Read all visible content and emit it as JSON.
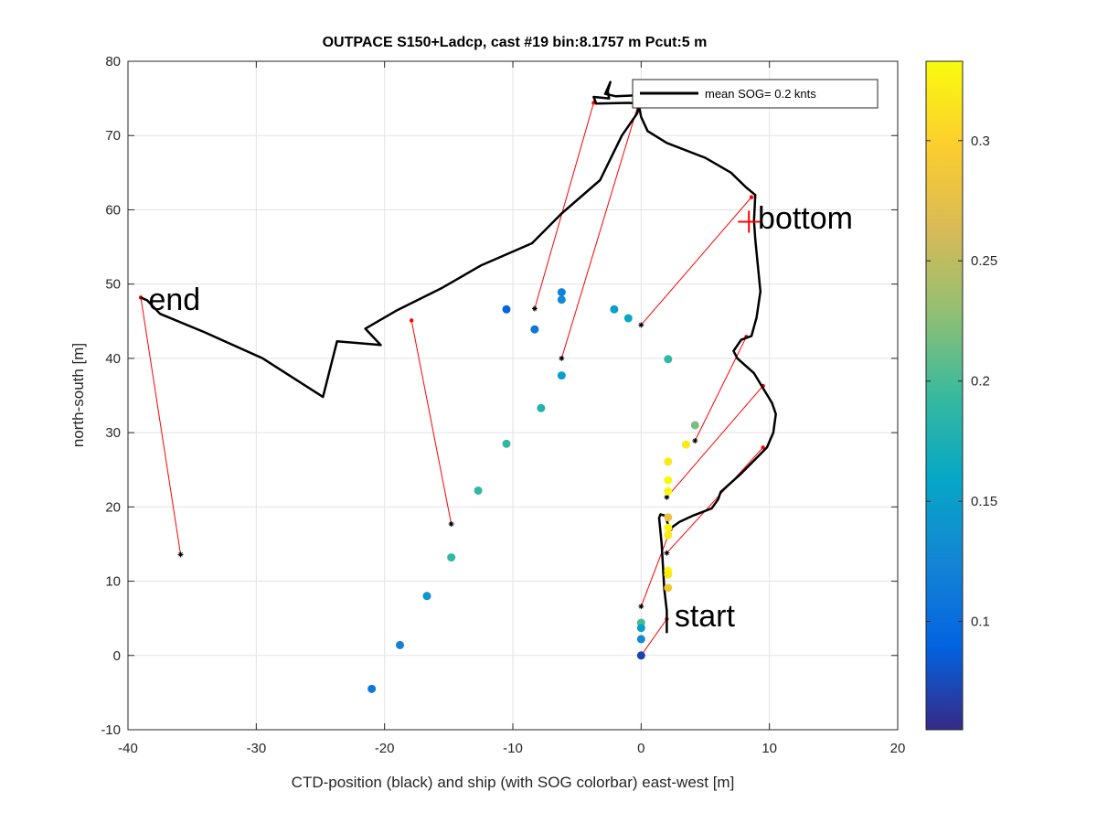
{
  "chart_data": {
    "type": "scatter",
    "title": "OUTPACE S150+Ladcp, cast #19 bin:8.1757 m  Pcut:5 m",
    "xlabel": "CTD-position (black) and ship (with SOG colorbar) east-west [m]",
    "ylabel": "north-south [m]",
    "xlim": [
      -40,
      20
    ],
    "ylim": [
      -10,
      80
    ],
    "xticks": [
      -40,
      -30,
      -20,
      -10,
      0,
      10,
      20
    ],
    "yticks": [
      -10,
      0,
      10,
      20,
      30,
      40,
      50,
      60,
      70,
      80
    ],
    "grid": true,
    "legend": {
      "label": "mean SOG=  0.2 knts",
      "placement": "top-right"
    },
    "colorbar": {
      "range": [
        0.055,
        0.333
      ],
      "ticks": [
        0.1,
        0.15,
        0.2,
        0.25,
        0.3
      ],
      "colormap": "parula"
    },
    "ctd_track": [
      [
        2.0,
        3.0
      ],
      [
        2.0,
        6.0
      ],
      [
        1.8,
        9.0
      ],
      [
        1.7,
        12.0
      ],
      [
        1.6,
        15.0
      ],
      [
        1.4,
        18.5
      ],
      [
        1.5,
        19.0
      ],
      [
        1.9,
        18.8
      ],
      [
        2.2,
        17.0
      ],
      [
        3.0,
        18.0
      ],
      [
        4.0,
        18.8
      ],
      [
        5.5,
        19.8
      ],
      [
        6.0,
        21.0
      ],
      [
        6.2,
        22.0
      ],
      [
        7.8,
        24.5
      ],
      [
        9.8,
        28.0
      ],
      [
        10.3,
        30.0
      ],
      [
        10.5,
        32.5
      ],
      [
        10.2,
        34.0
      ],
      [
        9.5,
        36.0
      ],
      [
        8.8,
        38.0
      ],
      [
        7.5,
        40.0
      ],
      [
        7.2,
        41.0
      ],
      [
        7.8,
        42.5
      ],
      [
        8.6,
        43.0
      ],
      [
        9.0,
        45.5
      ],
      [
        9.3,
        49.0
      ],
      [
        9.1,
        52.5
      ],
      [
        8.9,
        56.0
      ],
      [
        8.8,
        58.5
      ],
      [
        8.9,
        62.0
      ],
      [
        8.2,
        63.0
      ],
      [
        7.0,
        65.0
      ],
      [
        5.0,
        67.0
      ],
      [
        2.0,
        69.0
      ],
      [
        0.5,
        70.6
      ],
      [
        0.0,
        72.5
      ],
      [
        -0.2,
        74.3
      ],
      [
        -1.0,
        74.4
      ],
      [
        -3.5,
        74.3
      ],
      [
        -3.7,
        75.2
      ],
      [
        -2.5,
        75.0
      ],
      [
        -2.6,
        76.0
      ],
      [
        -2.4,
        77.2
      ],
      [
        -2.8,
        75.6
      ],
      [
        -2.0,
        75.3
      ],
      [
        -0.5,
        75.4
      ],
      [
        -0.1,
        74.5
      ],
      [
        -0.3,
        73.0
      ],
      [
        -1.5,
        70.0
      ],
      [
        -3.2,
        64.0
      ],
      [
        -6.2,
        59.5
      ],
      [
        -8.5,
        55.5
      ],
      [
        -12.5,
        52.5
      ],
      [
        -15.5,
        49.5
      ],
      [
        -19.0,
        46.5
      ],
      [
        -20.0,
        45.5
      ],
      [
        -21.5,
        44.0
      ],
      [
        -20.3,
        41.8
      ],
      [
        -23.7,
        42.3
      ],
      [
        -24.8,
        34.8
      ],
      [
        -29.5,
        40.0
      ],
      [
        -34.0,
        43.5
      ],
      [
        -37.5,
        46.0
      ],
      [
        -38.5,
        47.8
      ],
      [
        -39.0,
        48.2
      ]
    ],
    "ship_points": [
      {
        "x": -21.0,
        "y": -4.5,
        "sog": 0.11
      },
      {
        "x": -18.8,
        "y": 1.4,
        "sog": 0.12
      },
      {
        "x": -16.7,
        "y": 8.0,
        "sog": 0.14
      },
      {
        "x": -14.8,
        "y": 13.2,
        "sog": 0.19
      },
      {
        "x": -12.7,
        "y": 22.2,
        "sog": 0.19
      },
      {
        "x": -10.5,
        "y": 28.5,
        "sog": 0.19
      },
      {
        "x": -7.8,
        "y": 33.3,
        "sog": 0.18
      },
      {
        "x": -6.2,
        "y": 37.7,
        "sog": 0.15
      },
      {
        "x": -6.2,
        "y": 47.9,
        "sog": 0.13
      },
      {
        "x": -6.2,
        "y": 48.9,
        "sog": 0.12
      },
      {
        "x": -8.3,
        "y": 43.9,
        "sog": 0.11
      },
      {
        "x": -10.5,
        "y": 46.6,
        "sog": 0.09
      },
      {
        "x": -2.1,
        "y": 46.6,
        "sog": 0.15
      },
      {
        "x": -1.0,
        "y": 45.4,
        "sog": 0.16
      },
      {
        "x": 2.1,
        "y": 39.9,
        "sog": 0.19
      },
      {
        "x": 4.2,
        "y": 31.0,
        "sog": 0.22
      },
      {
        "x": 3.5,
        "y": 28.4,
        "sog": 0.32
      },
      {
        "x": 2.1,
        "y": 26.1,
        "sog": 0.32
      },
      {
        "x": 2.1,
        "y": 23.6,
        "sog": 0.33
      },
      {
        "x": 2.1,
        "y": 22.1,
        "sog": 0.33
      },
      {
        "x": 2.1,
        "y": 18.6,
        "sog": 0.28
      },
      {
        "x": 2.1,
        "y": 17.2,
        "sog": 0.33
      },
      {
        "x": 2.1,
        "y": 16.2,
        "sog": 0.32
      },
      {
        "x": 2.1,
        "y": 11.4,
        "sog": 0.33
      },
      {
        "x": 2.1,
        "y": 10.9,
        "sog": 0.32
      },
      {
        "x": 2.1,
        "y": 9.1,
        "sog": 0.29
      },
      {
        "x": 0.0,
        "y": 4.4,
        "sog": 0.2
      },
      {
        "x": 0.0,
        "y": 3.7,
        "sog": 0.15
      },
      {
        "x": 0.0,
        "y": 2.2,
        "sog": 0.13
      },
      {
        "x": 0.0,
        "y": 0.0,
        "sog": 0.07
      }
    ],
    "red_links": [
      {
        "ship": [
          0.0,
          0.0
        ],
        "ctd": [
          2.0,
          4.9
        ]
      },
      {
        "ship": [
          0.0,
          6.6
        ],
        "ctd": [
          2.3,
          17.0
        ]
      },
      {
        "ship": [
          2.0,
          13.8
        ],
        "ctd": [
          9.5,
          28.0
        ]
      },
      {
        "ship": [
          2.0,
          21.3
        ],
        "ctd": [
          9.5,
          36.3
        ]
      },
      {
        "ship": [
          4.2,
          28.9
        ],
        "ctd": [
          8.2,
          42.9
        ]
      },
      {
        "ship": [
          0.0,
          44.5
        ],
        "ctd": [
          8.6,
          61.7
        ]
      },
      {
        "ship": [
          -6.2,
          40.0
        ],
        "ctd": [
          -0.2,
          74.3
        ]
      },
      {
        "ship": [
          -8.3,
          46.7
        ],
        "ctd": [
          -3.7,
          74.4
        ]
      },
      {
        "ship": [
          -14.8,
          17.7
        ],
        "ctd": [
          -17.9,
          45.1
        ]
      },
      {
        "ship": [
          -35.9,
          13.6
        ],
        "ctd": [
          -39.0,
          48.2
        ]
      }
    ],
    "annotations": [
      {
        "text": "start",
        "x": 2.6,
        "y": 3.9
      },
      {
        "text": "bottom",
        "x": 9.1,
        "y": 57.5
      },
      {
        "text": "end",
        "x": -38.4,
        "y": 46.5
      }
    ],
    "bottom_marker": {
      "x": 8.4,
      "y": 58.4
    }
  }
}
